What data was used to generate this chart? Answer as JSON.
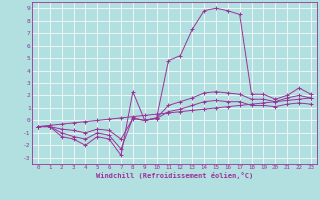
{
  "xlabel": "Windchill (Refroidissement éolien,°C)",
  "bg_color": "#b2e0e0",
  "grid_color": "#ffffff",
  "line_color": "#993399",
  "xlim": [
    -0.5,
    23.5
  ],
  "ylim": [
    -3.5,
    9.5
  ],
  "xticks": [
    0,
    1,
    2,
    3,
    4,
    5,
    6,
    7,
    8,
    9,
    10,
    11,
    12,
    13,
    14,
    15,
    16,
    17,
    18,
    19,
    20,
    21,
    22,
    23
  ],
  "yticks": [
    -3,
    -2,
    -1,
    0,
    1,
    2,
    3,
    4,
    5,
    6,
    7,
    8,
    9
  ],
  "series": [
    [
      -0.5,
      -0.5,
      -1.3,
      -1.5,
      -2.0,
      -1.3,
      -1.5,
      -2.8,
      2.3,
      0.0,
      0.2,
      4.8,
      5.2,
      7.3,
      8.8,
      9.0,
      8.8,
      8.5,
      2.1,
      2.1,
      1.7,
      2.0,
      2.6,
      2.1
    ],
    [
      -0.5,
      -0.5,
      -1.0,
      -1.3,
      -1.5,
      -1.0,
      -1.2,
      -2.3,
      0.2,
      0.0,
      0.2,
      1.2,
      1.5,
      1.8,
      2.2,
      2.3,
      2.2,
      2.1,
      1.7,
      1.7,
      1.5,
      1.8,
      2.0,
      1.8
    ],
    [
      -0.5,
      -0.5,
      -0.7,
      -0.8,
      -1.0,
      -0.7,
      -0.8,
      -1.5,
      0.15,
      0.0,
      0.15,
      0.7,
      0.9,
      1.2,
      1.5,
      1.6,
      1.5,
      1.5,
      1.2,
      1.2,
      1.1,
      1.3,
      1.4,
      1.3
    ],
    [
      -0.5,
      -0.4,
      -0.3,
      -0.2,
      -0.1,
      0.0,
      0.1,
      0.2,
      0.3,
      0.4,
      0.5,
      0.6,
      0.7,
      0.8,
      0.9,
      1.0,
      1.1,
      1.2,
      1.3,
      1.4,
      1.5,
      1.6,
      1.7,
      1.8
    ]
  ]
}
